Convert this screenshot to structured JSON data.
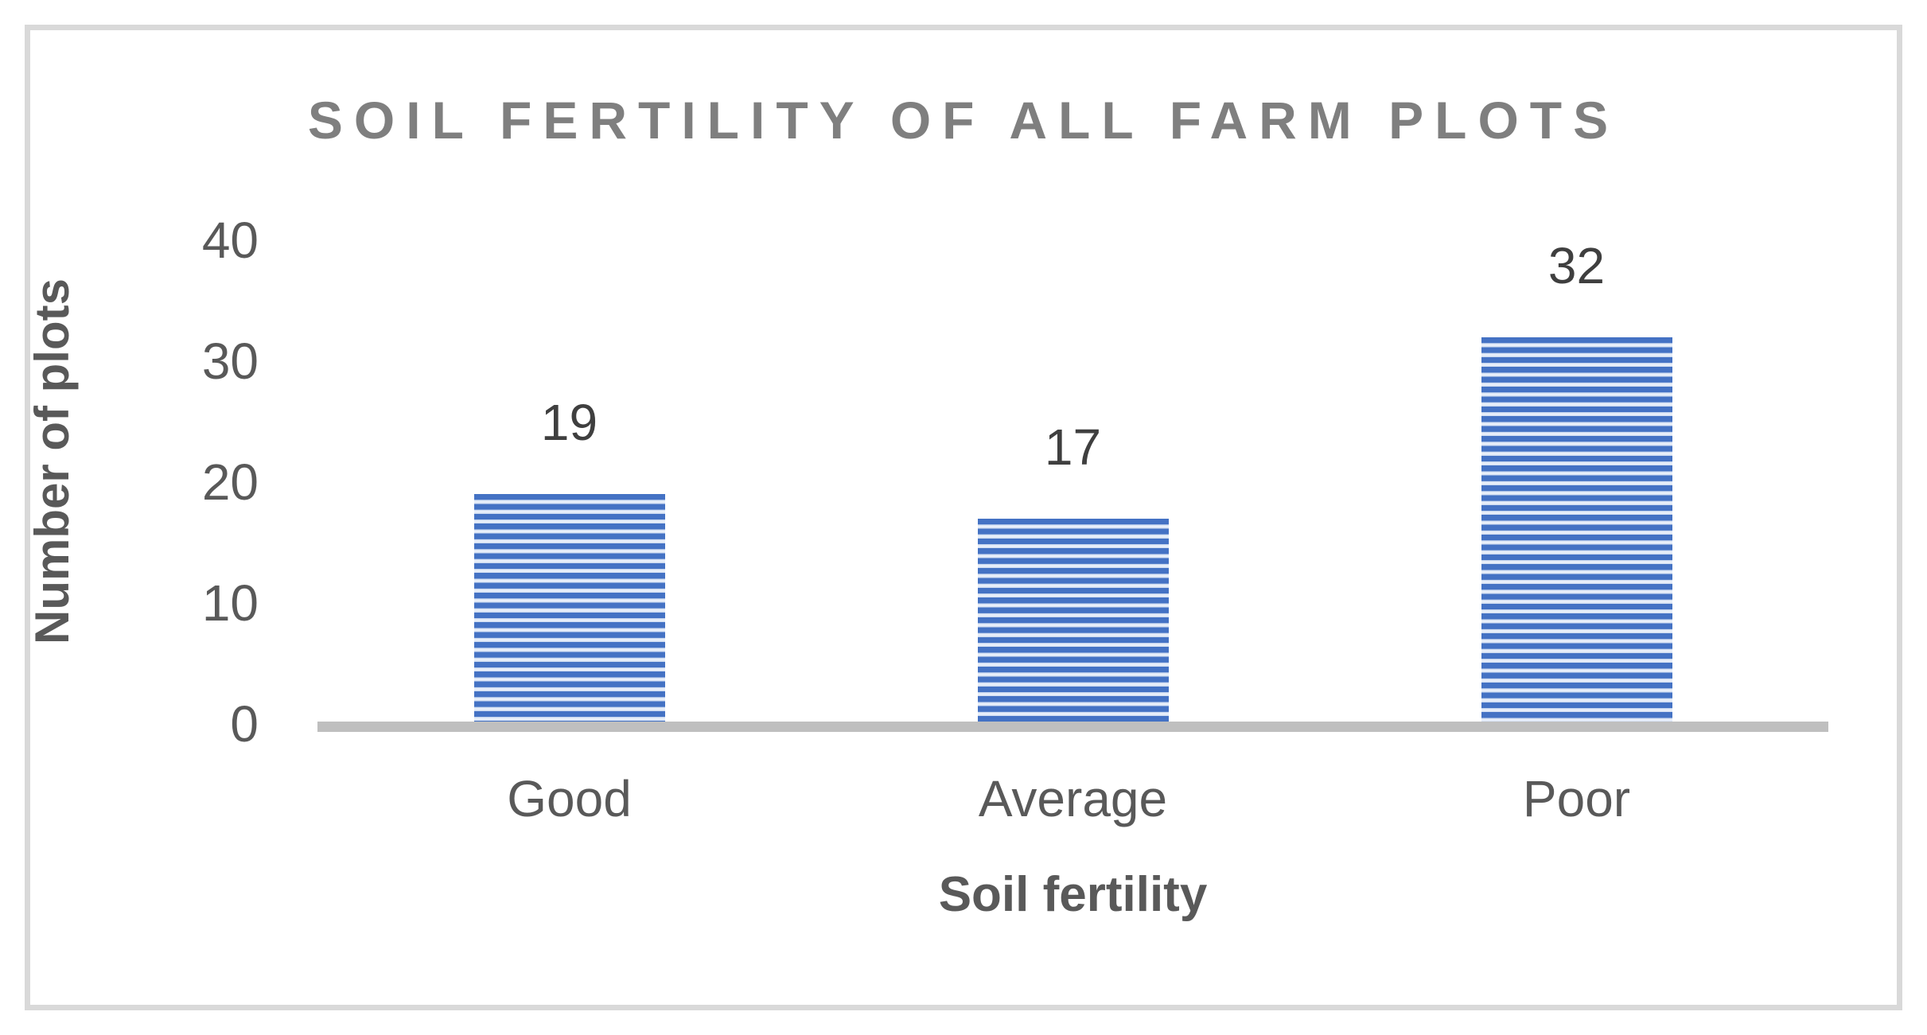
{
  "chart_data": {
    "type": "bar",
    "title": "SOIL FERTILITY OF ALL FARM PLOTS",
    "categories": [
      "Good",
      "Average",
      "Poor"
    ],
    "values": [
      19,
      17,
      32
    ],
    "data_labels": [
      "19",
      "17",
      "32"
    ],
    "xlabel": "Soil fertility",
    "ylabel": "Number of plots",
    "ylim": [
      0,
      40
    ],
    "yticks": [
      0,
      10,
      20,
      30,
      40
    ],
    "grid": false,
    "legend_position": "none"
  },
  "colors": {
    "bar_stripe_blue": "#4472C4",
    "bar_stripe_light": "#D9E2F3",
    "axis_line": "#BFBFBF",
    "tick_text": "#595959",
    "value_text": "#3F3F3F",
    "title_text": "#7F7F7F",
    "frame_border": "#D9D9D9"
  }
}
